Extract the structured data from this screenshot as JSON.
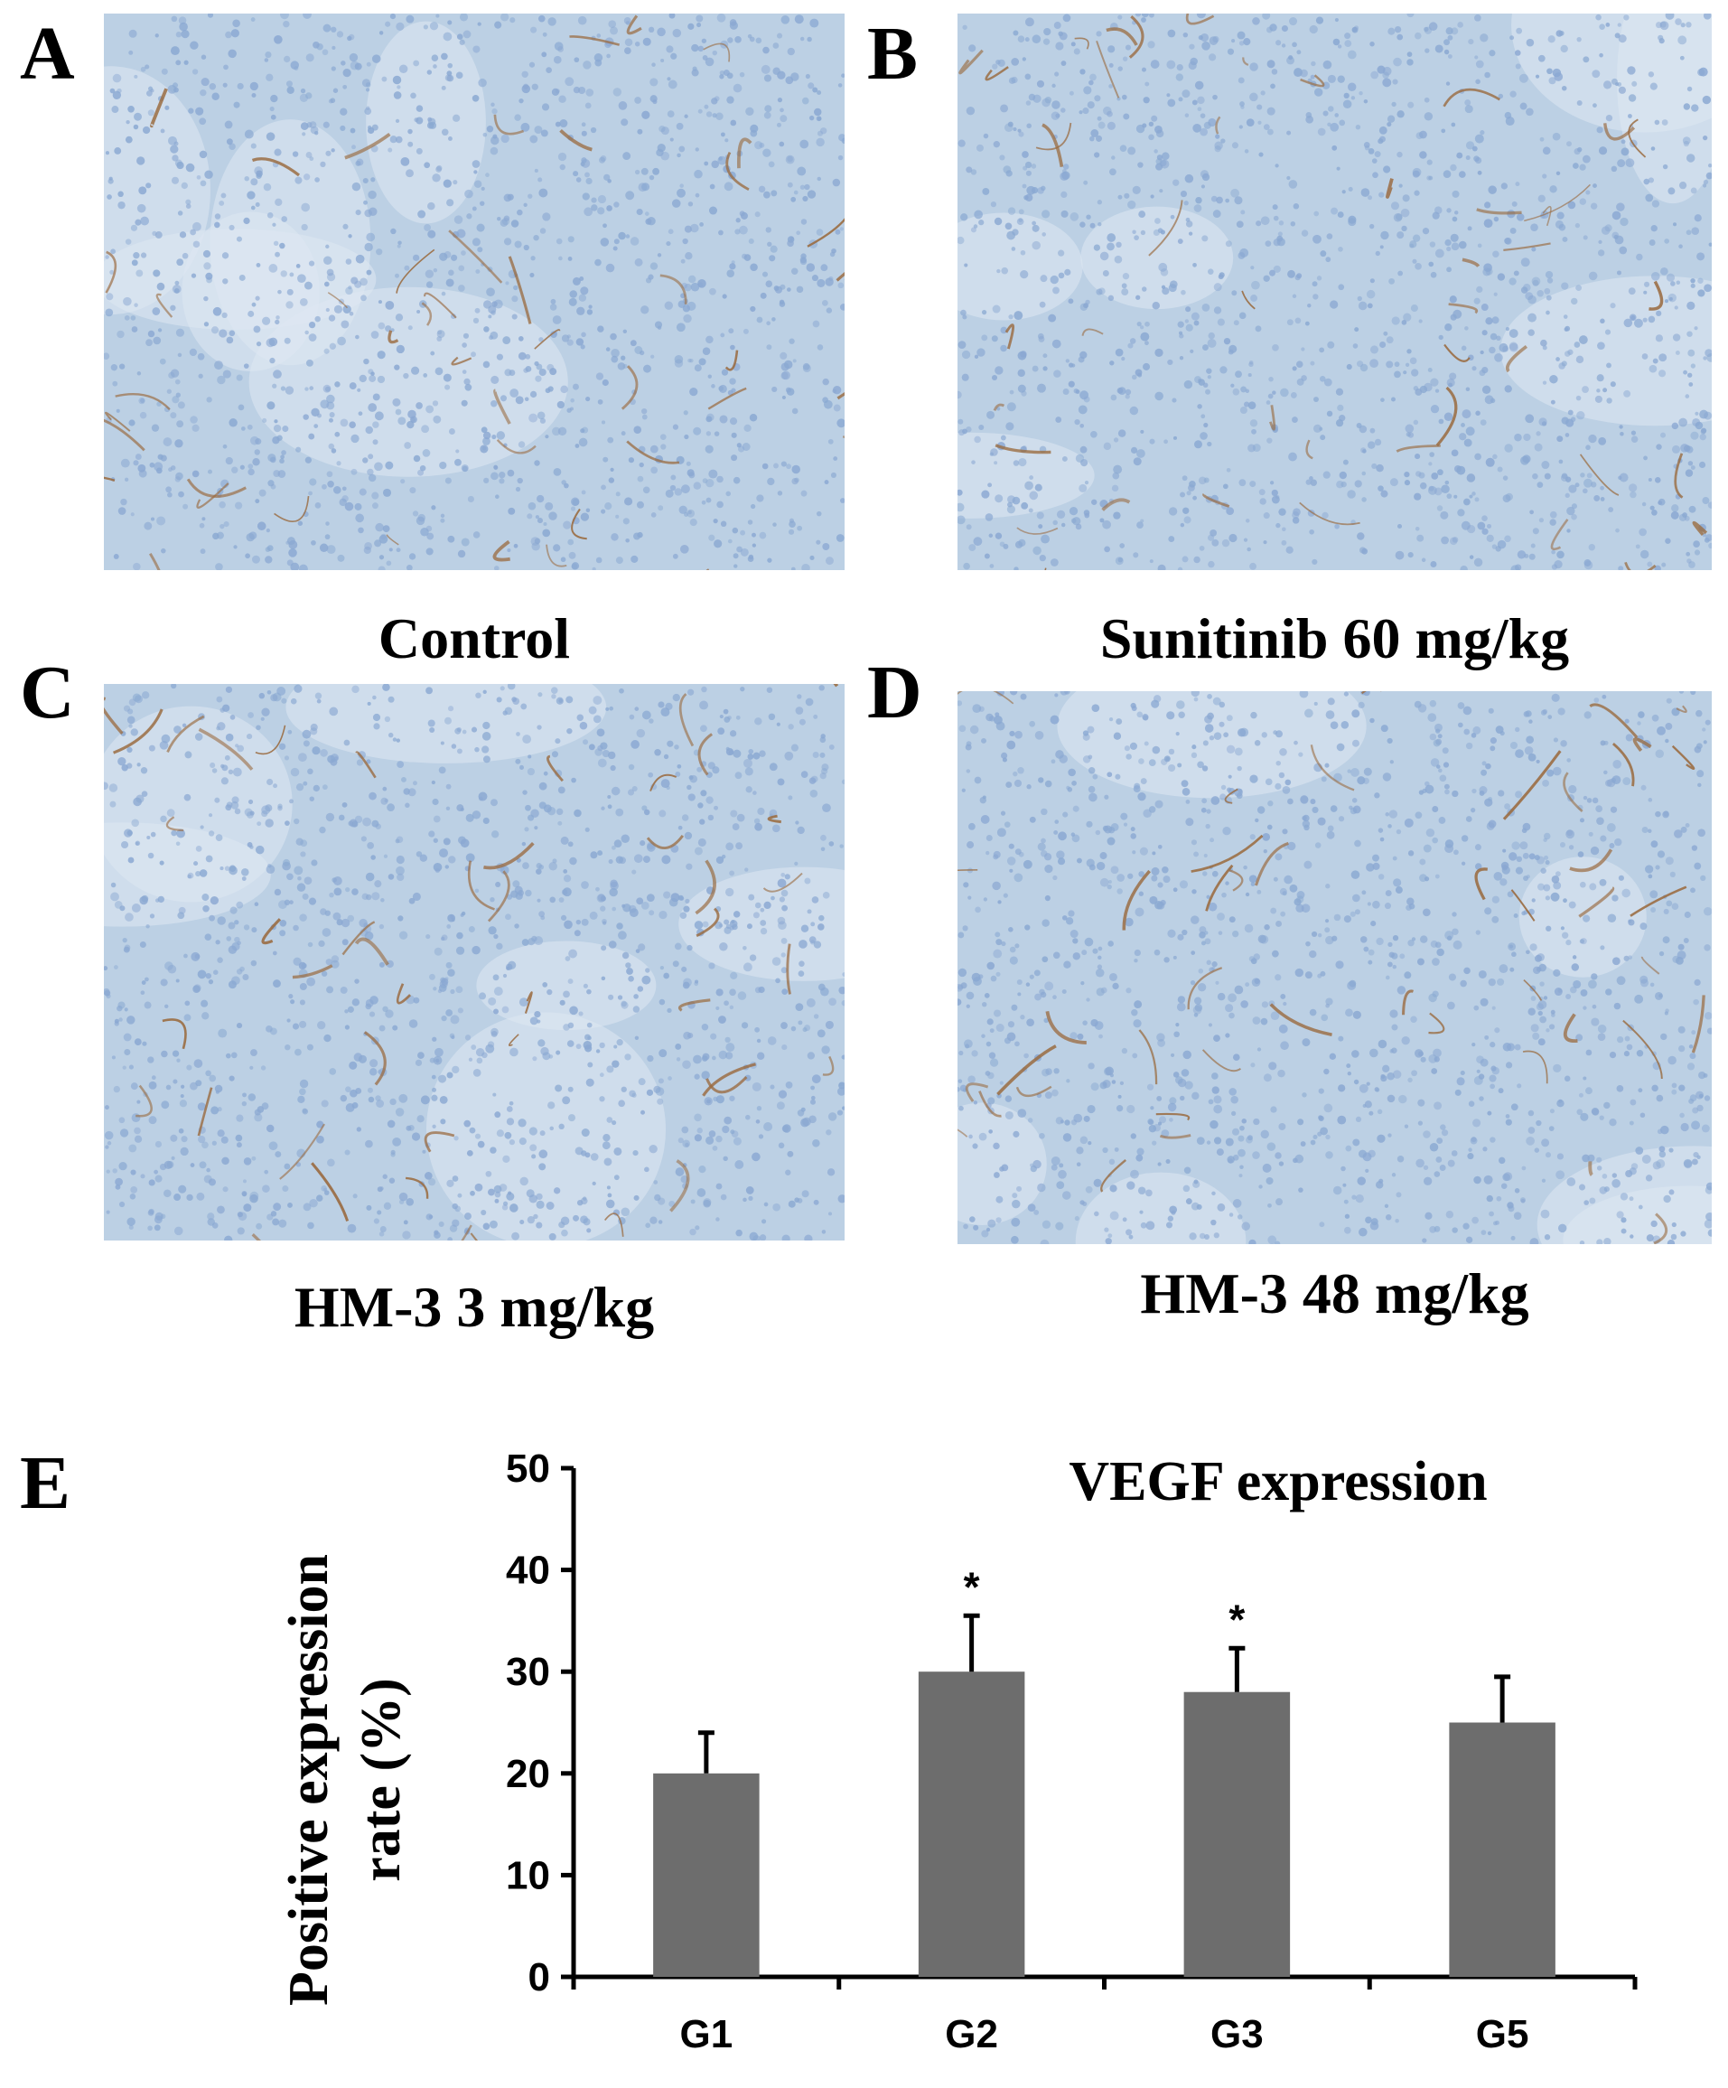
{
  "panels": [
    {
      "letter": "A",
      "caption": "Control"
    },
    {
      "letter": "B",
      "caption": "Sunitinib 60 mg/kg"
    },
    {
      "letter": "C",
      "caption": "HM-3 3 mg/kg"
    },
    {
      "letter": "D",
      "caption": "HM-3 48 mg/kg"
    }
  ],
  "chart_letter": "E",
  "colors": {
    "bar": "#6d6d6d",
    "tissue": "#bcd0e4",
    "nuclei": "#8aa8d2",
    "stain": "#9a6a3e"
  },
  "chart_data": {
    "type": "bar",
    "title": "VEGF expression",
    "ylabel_line1": "Positive expression",
    "ylabel_line2": "rate (%)",
    "categories": [
      "G1",
      "G2",
      "G3",
      "G5"
    ],
    "values": [
      20,
      30,
      28,
      25
    ],
    "errors": [
      4,
      5.5,
      4.3,
      4.5
    ],
    "significance": [
      "",
      "*",
      "*",
      ""
    ],
    "ylim": [
      0,
      50
    ],
    "yticks": [
      0,
      10,
      20,
      30,
      40,
      50
    ],
    "grid": false,
    "legend": "none"
  }
}
